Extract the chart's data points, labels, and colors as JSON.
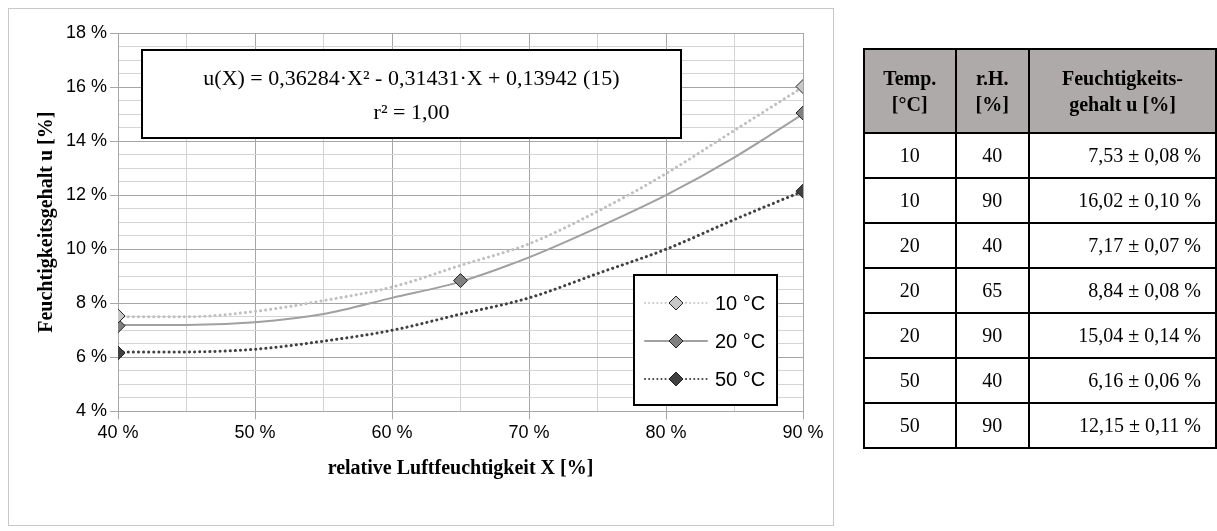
{
  "chart_data": [
    {
      "type": "scatter",
      "xlabel": "relative Luftfeuchtigkeit X [%]",
      "ylabel": "Feuchtigkeitsgehalt u [%]",
      "annotations": [
        "u(X) = 0,36284·X² - 0,31431·X + 0,13942 (15)",
        "r² = 1,00"
      ],
      "xlim": [
        40,
        90
      ],
      "xticks": [
        {
          "value": 40,
          "label": "40 %"
        },
        {
          "value": 45,
          "label": null
        },
        {
          "value": 50,
          "label": "50 %"
        },
        {
          "value": 55,
          "label": null
        },
        {
          "value": 60,
          "label": "60 %"
        },
        {
          "value": 65,
          "label": null
        },
        {
          "value": 70,
          "label": "70 %"
        },
        {
          "value": 75,
          "label": null
        },
        {
          "value": 80,
          "label": "80 %"
        },
        {
          "value": 85,
          "label": null
        },
        {
          "value": 90,
          "label": "90 %"
        }
      ],
      "ylim": [
        4,
        18
      ],
      "yticks": [
        {
          "value": 4,
          "label": "4 %"
        },
        {
          "value": 4.5,
          "label": null
        },
        {
          "value": 5,
          "label": null
        },
        {
          "value": 5.5,
          "label": null
        },
        {
          "value": 6,
          "label": "6 %"
        },
        {
          "value": 6.5,
          "label": null
        },
        {
          "value": 7,
          "label": null
        },
        {
          "value": 7.5,
          "label": null
        },
        {
          "value": 8,
          "label": "8 %"
        },
        {
          "value": 8.5,
          "label": null
        },
        {
          "value": 9,
          "label": null
        },
        {
          "value": 9.5,
          "label": null
        },
        {
          "value": 10,
          "label": "10 %"
        },
        {
          "value": 10.5,
          "label": null
        },
        {
          "value": 11,
          "label": null
        },
        {
          "value": 11.5,
          "label": null
        },
        {
          "value": 12,
          "label": "12 %"
        },
        {
          "value": 12.5,
          "label": null
        },
        {
          "value": 13,
          "label": null
        },
        {
          "value": 13.5,
          "label": null
        },
        {
          "value": 14,
          "label": "14 %"
        },
        {
          "value": 14.5,
          "label": null
        },
        {
          "value": 15,
          "label": null
        },
        {
          "value": 15.5,
          "label": null
        },
        {
          "value": 16,
          "label": "16 %"
        },
        {
          "value": 16.5,
          "label": null
        },
        {
          "value": 17,
          "label": null
        },
        {
          "value": 17.5,
          "label": null
        },
        {
          "value": 18,
          "label": "18 %"
        }
      ],
      "grid": true,
      "legend": "bottom right",
      "marker": "diamond",
      "series": [
        {
          "type": "line",
          "color": "#c0c0c0",
          "line_style": "dotted",
          "marker": "none",
          "x": [
            40,
            45,
            50,
            55,
            60,
            65,
            70,
            75,
            80,
            85,
            90
          ],
          "values": [
            7.5,
            7.5,
            7.7,
            8.1,
            8.6,
            9.4,
            10.2,
            11.4,
            12.8,
            14.4,
            16.0
          ]
        },
        {
          "type": "line",
          "color": "#a0a0a0",
          "line_style": "solid",
          "marker": "none",
          "x": [
            40,
            45,
            50,
            55,
            60,
            65,
            70,
            75,
            80,
            85,
            90
          ],
          "values": [
            7.2,
            7.2,
            7.3,
            7.6,
            8.2,
            8.8,
            9.7,
            10.8,
            12.0,
            13.4,
            15.0
          ]
        },
        {
          "type": "line",
          "color": "#404040",
          "line_style": "dotted",
          "marker": "none",
          "x": [
            40,
            45,
            50,
            55,
            60,
            65,
            70,
            75,
            80,
            85,
            90
          ],
          "values": [
            6.2,
            6.2,
            6.3,
            6.6,
            7.0,
            7.6,
            8.2,
            9.1,
            10.0,
            11.1,
            12.15
          ]
        },
        {
          "type": "scatter",
          "name": "10 °C",
          "color": "#c8c8c8",
          "line_style": "dotted",
          "x": [
            40,
            90
          ],
          "values": [
            7.53,
            16.02
          ]
        },
        {
          "type": "scatter",
          "name": "20 °C",
          "color": "#808080",
          "line_style": "solid",
          "x": [
            40,
            65,
            90
          ],
          "values": [
            7.17,
            8.84,
            15.04
          ]
        },
        {
          "type": "scatter",
          "name": "50 °C",
          "color": "#404040",
          "line_style": "dotted",
          "x": [
            40,
            90
          ],
          "values": [
            6.16,
            12.15
          ]
        }
      ]
    },
    {
      "type": "other",
      "annotations": [
        "Temp.\n[°C]",
        "r.H.\n[%]",
        "Feuchtigkeits-\ngehalt u [%]",
        "10",
        "40",
        "7,53 ± 0,08 %",
        "10",
        "90",
        "16,02 ± 0,10 %",
        "20",
        "40",
        "7,17 ± 0,07 %",
        "20",
        "65",
        "8,84 ± 0,08 %",
        "20",
        "90",
        "15,04 ± 0,14 %",
        "50",
        "40",
        "6,16 ± 0,06 %",
        "50",
        "90",
        "12,15 ± 0,11 %"
      ]
    }
  ]
}
